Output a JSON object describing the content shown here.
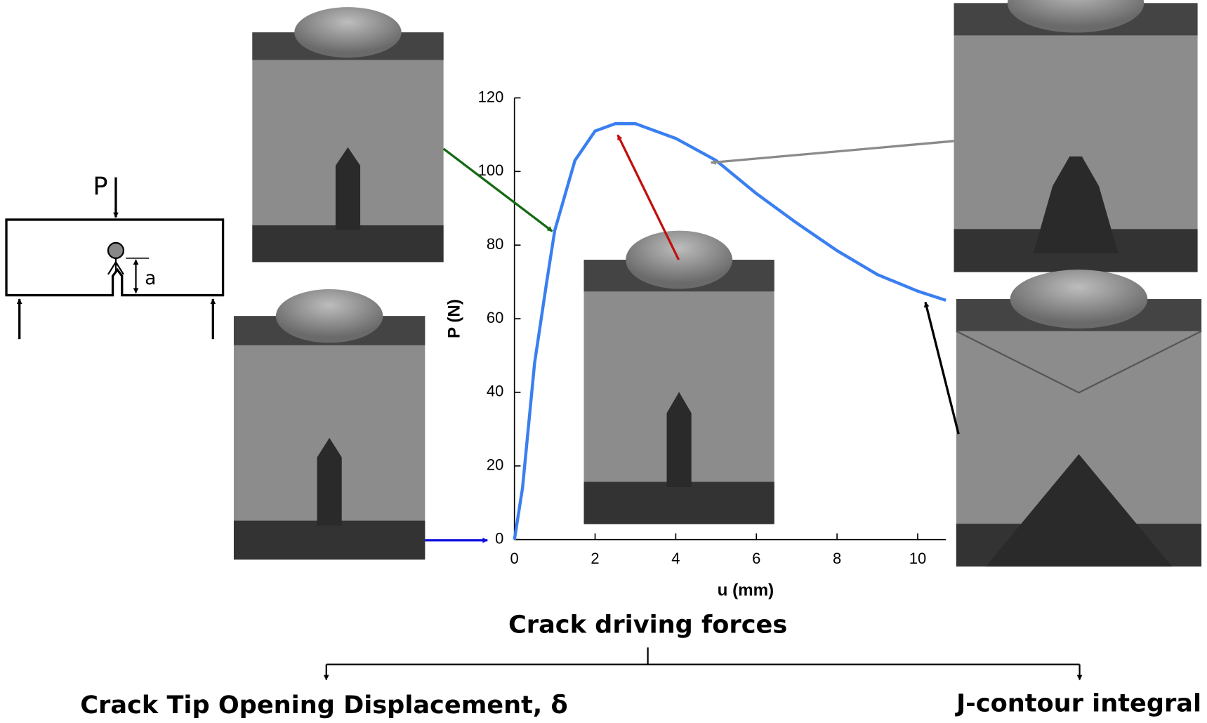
{
  "chart_data": {
    "type": "line",
    "x": [
      0,
      0.2,
      0.5,
      0.8,
      1.0,
      1.5,
      2.0,
      2.5,
      3.0,
      4.0,
      5.0,
      6.0,
      7.0,
      8.0,
      9.0,
      10.0,
      10.7
    ],
    "values": [
      0,
      14,
      48,
      70,
      84,
      103,
      111,
      113,
      113,
      109,
      103,
      94,
      86,
      78.5,
      72,
      67.5,
      65
    ],
    "color": "#3a7ff0",
    "xlabel": "u (mm)",
    "ylabel": "P (N)",
    "xlim": [
      0,
      10.7
    ],
    "ylim": [
      0,
      120
    ],
    "xticks": [
      0,
      2,
      4,
      6,
      8,
      10
    ],
    "yticks": [
      0,
      20,
      40,
      60,
      80,
      100,
      120
    ]
  },
  "diagram": {
    "load": "P",
    "crack_length": "a",
    "heading": "Crack driving forces",
    "left_branch": "Crack Tip Opening Displacement, δ",
    "right_branch": "J-contour integral"
  }
}
